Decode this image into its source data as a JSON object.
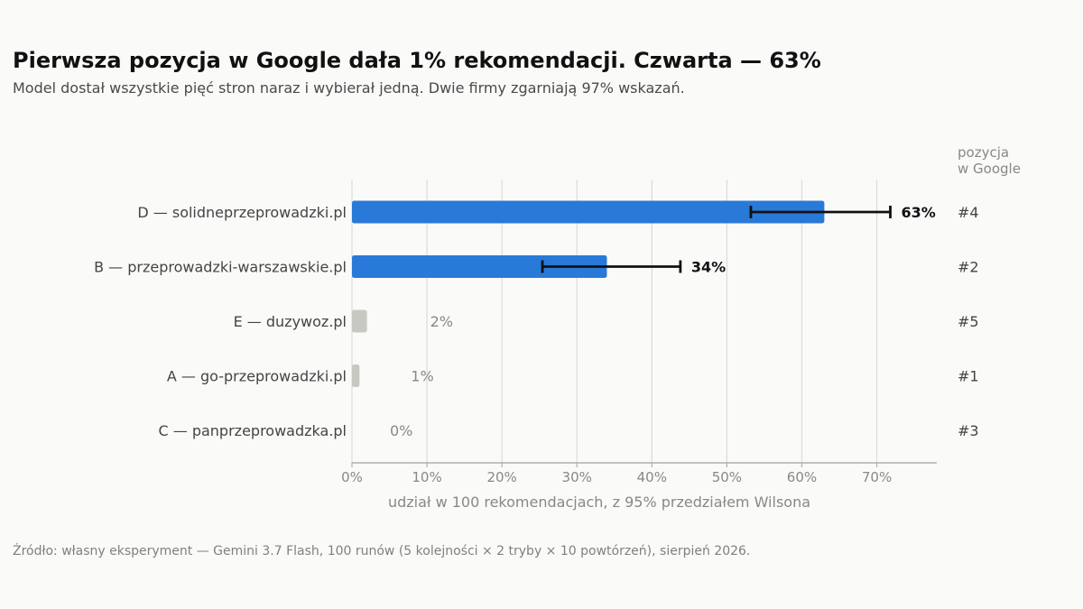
{
  "title": "Pierwsza pozycja w Google dała 1% rekomendacji. Czwarta — 63%",
  "subtitle": "Model dostał wszystkie pięć stron naraz i wybierał jedną. Dwie firmy zgarniają 97% wskazań.",
  "source": "Źródło: własny eksperyment — Gemini 3.7 Flash, 100 runów (5 kolejności × 2 tryby × 10 powtórzeń), sierpień 2026.",
  "colors": {
    "highlight": "#2979d8",
    "muted": "#c8c8c3",
    "error_bar": "#111111",
    "grid": "#dcdcd5",
    "axis": "#b0b0aa",
    "label": "#444444",
    "muted_text": "#888888"
  },
  "chart_data": {
    "type": "bar",
    "orientation": "horizontal",
    "title": "Pierwsza pozycja w Google dała 1% rekomendacji. Czwarta — 63%",
    "xlabel": "udział w 100 rekomendacjach, z 95% przedziałem Wilsona",
    "ylabel": "",
    "xlim": [
      0,
      78
    ],
    "xticks": [
      0,
      10,
      20,
      30,
      40,
      50,
      60,
      70
    ],
    "xtick_labels": [
      "0%",
      "10%",
      "20%",
      "30%",
      "40%",
      "50%",
      "60%",
      "70%"
    ],
    "grid": "vertical",
    "right_column_header": [
      "pozycja",
      "w Google"
    ],
    "categories": [
      "D — solidneprzeprowadzki.pl",
      "B — przeprowadzki-warszawskie.pl",
      "E — duzywoz.pl",
      "A — go-przeprowadzki.pl",
      "C — panprzeprowadzka.pl"
    ],
    "values": [
      63,
      34,
      2,
      1,
      0
    ],
    "value_labels": [
      "63%",
      "34%",
      "2%",
      "1%",
      "0%"
    ],
    "highlighted": [
      true,
      true,
      false,
      false,
      false
    ],
    "ci_low": [
      53.2,
      25.4,
      null,
      null,
      null
    ],
    "ci_high": [
      71.8,
      43.8,
      null,
      null,
      null
    ],
    "google_position": [
      "#4",
      "#2",
      "#5",
      "#1",
      "#3"
    ]
  }
}
